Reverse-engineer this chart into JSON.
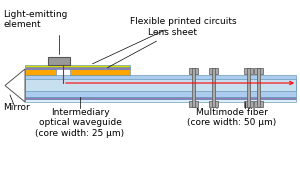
{
  "bg_color": "#ffffff",
  "colors": {
    "orange": "#FFA500",
    "light_blue": "#AACCEE",
    "lighter_blue": "#C8DFF0",
    "blue_border": "#5588AA",
    "purple": "#9977BB",
    "gray_box": "#999999",
    "dark_gray": "#555555",
    "light_gray": "#AAAAAA",
    "mid_gray": "#888888",
    "red": "#FF0000",
    "white": "#FFFFFF",
    "yellow": "#DDDD00",
    "pale_blue": "#DDEEFF"
  },
  "labels": {
    "light_emitting": "Light-emitting\nelement",
    "flexible": "Flexible printed circuits",
    "lens": "Lens sheet",
    "mirror": "Mirror",
    "waveguide": "Intermediary\noptical waveguide\n(core width: 25 μm)",
    "fiber": "Multimode fiber\n(core width: 50 μm)"
  },
  "font_size": 6.5
}
